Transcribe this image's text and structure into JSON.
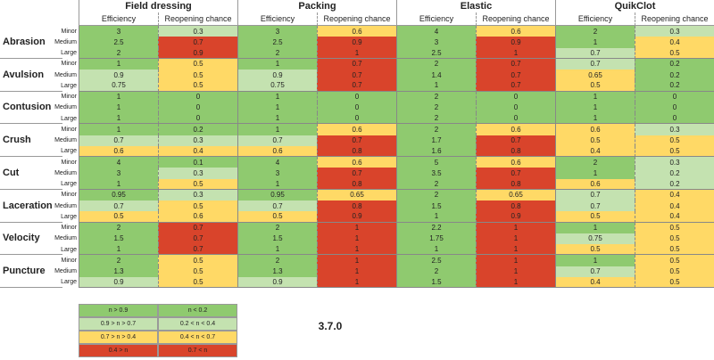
{
  "table": {
    "treatments": [
      "Field dressing",
      "Packing",
      "Elastic",
      "QuikClot"
    ],
    "metrics": [
      "Efficiency",
      "Reopening chance"
    ],
    "wounds": [
      {
        "name": "Abrasion",
        "rows": [
          {
            "severity": "Minor",
            "values": [
              3,
              0.3,
              3,
              0.6,
              4,
              0.6,
              2,
              0.3
            ],
            "colors": [
              "#8fca6f",
              "#c4e2b0",
              "#8fca6f",
              "#ffd966",
              "#8fca6f",
              "#ffd966",
              "#8fca6f",
              "#c4e2b0"
            ]
          },
          {
            "severity": "Medium",
            "values": [
              2.5,
              0.7,
              2.5,
              0.9,
              3,
              0.9,
              1,
              0.4
            ],
            "colors": [
              "#8fca6f",
              "#d9442b",
              "#8fca6f",
              "#d9442b",
              "#8fca6f",
              "#d9442b",
              "#8fca6f",
              "#ffd966"
            ]
          },
          {
            "severity": "Large",
            "values": [
              2,
              0.9,
              2,
              1,
              2.5,
              1,
              0.7,
              0.5
            ],
            "colors": [
              "#8fca6f",
              "#d9442b",
              "#8fca6f",
              "#d9442b",
              "#8fca6f",
              "#d9442b",
              "#c4e2b0",
              "#ffd966"
            ]
          }
        ]
      },
      {
        "name": "Avulsion",
        "rows": [
          {
            "severity": "Minor",
            "values": [
              1,
              0.5,
              1,
              0.7,
              2,
              0.7,
              0.7,
              0.2
            ],
            "colors": [
              "#8fca6f",
              "#ffd966",
              "#8fca6f",
              "#d9442b",
              "#8fca6f",
              "#d9442b",
              "#c4e2b0",
              "#8fca6f"
            ]
          },
          {
            "severity": "Medium",
            "values": [
              0.9,
              0.5,
              0.9,
              0.7,
              1.4,
              0.7,
              0.65,
              0.2
            ],
            "colors": [
              "#c4e2b0",
              "#ffd966",
              "#c4e2b0",
              "#d9442b",
              "#8fca6f",
              "#d9442b",
              "#ffd966",
              "#8fca6f"
            ]
          },
          {
            "severity": "Large",
            "values": [
              0.75,
              0.5,
              0.75,
              0.7,
              1,
              0.7,
              0.5,
              0.2
            ],
            "colors": [
              "#c4e2b0",
              "#ffd966",
              "#c4e2b0",
              "#d9442b",
              "#8fca6f",
              "#d9442b",
              "#ffd966",
              "#8fca6f"
            ]
          }
        ]
      },
      {
        "name": "Contusion",
        "rows": [
          {
            "severity": "Minor",
            "values": [
              1,
              0,
              1,
              0,
              2,
              0,
              1,
              0
            ],
            "colors": [
              "#8fca6f",
              "#8fca6f",
              "#8fca6f",
              "#8fca6f",
              "#8fca6f",
              "#8fca6f",
              "#8fca6f",
              "#8fca6f"
            ]
          },
          {
            "severity": "Medium",
            "values": [
              1,
              0,
              1,
              0,
              2,
              0,
              1,
              0
            ],
            "colors": [
              "#8fca6f",
              "#8fca6f",
              "#8fca6f",
              "#8fca6f",
              "#8fca6f",
              "#8fca6f",
              "#8fca6f",
              "#8fca6f"
            ]
          },
          {
            "severity": "Large",
            "values": [
              1,
              0,
              1,
              0,
              2,
              0,
              1,
              0
            ],
            "colors": [
              "#8fca6f",
              "#8fca6f",
              "#8fca6f",
              "#8fca6f",
              "#8fca6f",
              "#8fca6f",
              "#8fca6f",
              "#8fca6f"
            ]
          }
        ]
      },
      {
        "name": "Crush",
        "rows": [
          {
            "severity": "Minor",
            "values": [
              1,
              0.2,
              1,
              0.6,
              2,
              0.6,
              0.6,
              0.3
            ],
            "colors": [
              "#8fca6f",
              "#8fca6f",
              "#8fca6f",
              "#ffd966",
              "#8fca6f",
              "#ffd966",
              "#ffd966",
              "#c4e2b0"
            ]
          },
          {
            "severity": "Medium",
            "values": [
              0.7,
              0.3,
              0.7,
              0.7,
              1.7,
              0.7,
              0.5,
              0.5
            ],
            "colors": [
              "#c4e2b0",
              "#c4e2b0",
              "#c4e2b0",
              "#d9442b",
              "#8fca6f",
              "#d9442b",
              "#ffd966",
              "#ffd966"
            ]
          },
          {
            "severity": "Large",
            "values": [
              0.6,
              0.4,
              0.6,
              0.8,
              1.6,
              0.8,
              0.4,
              0.5
            ],
            "colors": [
              "#ffd966",
              "#ffd966",
              "#ffd966",
              "#d9442b",
              "#8fca6f",
              "#d9442b",
              "#ffd966",
              "#ffd966"
            ]
          }
        ]
      },
      {
        "name": "Cut",
        "rows": [
          {
            "severity": "Minor",
            "values": [
              4,
              0.1,
              4,
              0.6,
              5,
              0.6,
              2,
              0.3
            ],
            "colors": [
              "#8fca6f",
              "#8fca6f",
              "#8fca6f",
              "#ffd966",
              "#8fca6f",
              "#ffd966",
              "#8fca6f",
              "#c4e2b0"
            ]
          },
          {
            "severity": "Medium",
            "values": [
              3,
              0.3,
              3,
              0.7,
              3.5,
              0.7,
              1,
              0.2
            ],
            "colors": [
              "#8fca6f",
              "#c4e2b0",
              "#8fca6f",
              "#d9442b",
              "#8fca6f",
              "#d9442b",
              "#8fca6f",
              "#c4e2b0"
            ]
          },
          {
            "severity": "Large",
            "values": [
              1,
              0.5,
              1,
              0.8,
              2,
              0.8,
              0.6,
              0.2
            ],
            "colors": [
              "#8fca6f",
              "#ffd966",
              "#8fca6f",
              "#d9442b",
              "#8fca6f",
              "#d9442b",
              "#ffd966",
              "#c4e2b0"
            ]
          }
        ]
      },
      {
        "name": "Laceration",
        "rows": [
          {
            "severity": "Minor",
            "values": [
              0.95,
              0.3,
              0.95,
              0.65,
              2,
              0.65,
              0.7,
              0.4
            ],
            "colors": [
              "#8fca6f",
              "#c4e2b0",
              "#8fca6f",
              "#ffd966",
              "#8fca6f",
              "#ffd966",
              "#c4e2b0",
              "#ffd966"
            ]
          },
          {
            "severity": "Medium",
            "values": [
              0.7,
              0.5,
              0.7,
              0.8,
              1.5,
              0.8,
              0.7,
              0.4
            ],
            "colors": [
              "#c4e2b0",
              "#ffd966",
              "#c4e2b0",
              "#d9442b",
              "#8fca6f",
              "#d9442b",
              "#c4e2b0",
              "#ffd966"
            ]
          },
          {
            "severity": "Large",
            "values": [
              0.5,
              0.6,
              0.5,
              0.9,
              1,
              0.9,
              0.5,
              0.4
            ],
            "colors": [
              "#ffd966",
              "#ffd966",
              "#ffd966",
              "#d9442b",
              "#8fca6f",
              "#d9442b",
              "#ffd966",
              "#ffd966"
            ]
          }
        ]
      },
      {
        "name": "Velocity",
        "rows": [
          {
            "severity": "Minor",
            "values": [
              2,
              0.7,
              2,
              1,
              2.2,
              1,
              1,
              0.5
            ],
            "colors": [
              "#8fca6f",
              "#d9442b",
              "#8fca6f",
              "#d9442b",
              "#8fca6f",
              "#d9442b",
              "#8fca6f",
              "#ffd966"
            ]
          },
          {
            "severity": "Medium",
            "values": [
              1.5,
              0.7,
              1.5,
              1,
              1.75,
              1,
              0.75,
              0.5
            ],
            "colors": [
              "#8fca6f",
              "#d9442b",
              "#8fca6f",
              "#d9442b",
              "#8fca6f",
              "#d9442b",
              "#c4e2b0",
              "#ffd966"
            ]
          },
          {
            "severity": "Large",
            "values": [
              1,
              0.7,
              1,
              1,
              1,
              1,
              0.5,
              0.5
            ],
            "colors": [
              "#8fca6f",
              "#d9442b",
              "#8fca6f",
              "#d9442b",
              "#8fca6f",
              "#d9442b",
              "#ffd966",
              "#ffd966"
            ]
          }
        ]
      },
      {
        "name": "Puncture",
        "rows": [
          {
            "severity": "Minor",
            "values": [
              2,
              0.5,
              2,
              1,
              2.5,
              1,
              1,
              0.5
            ],
            "colors": [
              "#8fca6f",
              "#ffd966",
              "#8fca6f",
              "#d9442b",
              "#8fca6f",
              "#d9442b",
              "#8fca6f",
              "#ffd966"
            ]
          },
          {
            "severity": "Medium",
            "values": [
              1.3,
              0.5,
              1.3,
              1,
              2,
              1,
              0.7,
              0.5
            ],
            "colors": [
              "#8fca6f",
              "#ffd966",
              "#8fca6f",
              "#d9442b",
              "#8fca6f",
              "#d9442b",
              "#c4e2b0",
              "#ffd966"
            ]
          },
          {
            "severity": "Large",
            "values": [
              0.9,
              0.5,
              0.9,
              1,
              1.5,
              1,
              0.4,
              0.5
            ],
            "colors": [
              "#c4e2b0",
              "#ffd966",
              "#c4e2b0",
              "#d9442b",
              "#8fca6f",
              "#d9442b",
              "#ffd966",
              "#ffd966"
            ]
          }
        ]
      }
    ]
  },
  "legend": [
    {
      "label": "n > 0.9",
      "color": "#8fca6f"
    },
    {
      "label": "n < 0.2",
      "color": "#8fca6f"
    },
    {
      "label": "0.9 > n > 0.7",
      "color": "#c4e2b0"
    },
    {
      "label": "0.2 < n < 0.4",
      "color": "#c4e2b0"
    },
    {
      "label": "0.7 > n > 0.4",
      "color": "#ffd966"
    },
    {
      "label": "0.4 < n < 0.7",
      "color": "#ffd966"
    },
    {
      "label": "0.4 > n",
      "color": "#d9442b"
    },
    {
      "label": "0.7 < n",
      "color": "#d9442b"
    }
  ],
  "version": "3.7.0"
}
